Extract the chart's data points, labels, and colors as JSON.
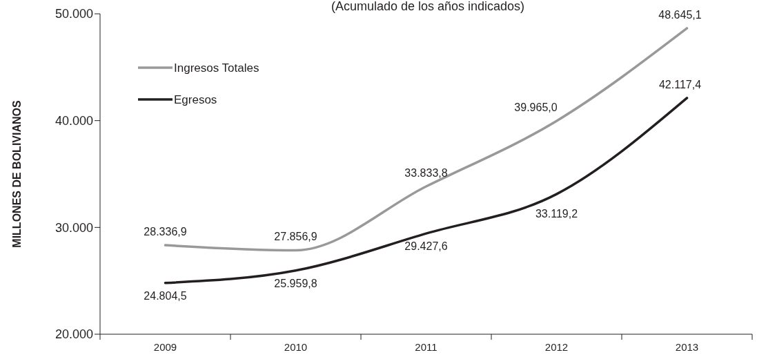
{
  "chart_data": {
    "type": "line",
    "title": "(Acumulado de los años indicados)",
    "ylabel": "MILLONES DE BOLIVIANOS",
    "categories": [
      "2009",
      "2010",
      "2011",
      "2012",
      "2013"
    ],
    "series": [
      {
        "name": "Ingresos Totales",
        "color": "#999999",
        "values": [
          28336.9,
          27856.9,
          33833.8,
          39965.0,
          48645.1
        ],
        "value_labels": [
          "28.336,9",
          "27.856,9",
          "33.833,8",
          "39.965,0",
          "48.645,1"
        ]
      },
      {
        "name": "Egresos",
        "color": "#231f20",
        "values": [
          24804.5,
          25959.8,
          29427.6,
          33119.2,
          42117.4
        ],
        "value_labels": [
          "24.804,5",
          "25.959,8",
          "29.427,6",
          "33.119,2",
          "42.117,4"
        ]
      }
    ],
    "ylim": [
      20000,
      50000
    ],
    "yticks": [
      {
        "value": 20000,
        "label": "20.000"
      },
      {
        "value": 30000,
        "label": "30.000"
      },
      {
        "value": 40000,
        "label": "40.000"
      },
      {
        "value": 50000,
        "label": "50.000"
      }
    ],
    "grid": false,
    "legend": "top left",
    "marker": "none",
    "line_style": "solid"
  }
}
